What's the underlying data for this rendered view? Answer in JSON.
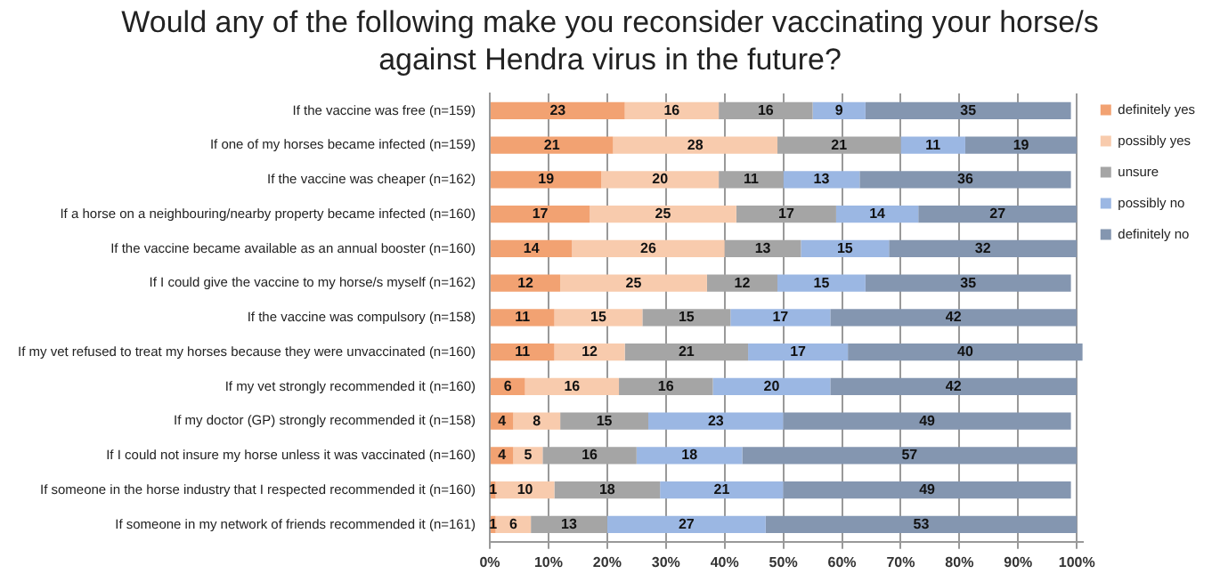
{
  "chart_data": {
    "type": "bar",
    "orientation": "horizontal",
    "stacked": true,
    "title": "Would any of the following make you reconsider vaccinating your horse/s against Hendra virus in the future?",
    "categories": [
      "If the vaccine was free (n=159)",
      "If one of my horses became infected (n=159)",
      "If the vaccine was cheaper (n=162)",
      "If a horse on a neighbouring/nearby property became infected (n=160)",
      "If the vaccine became available as an annual booster (n=160)",
      "If I could give the vaccine to my horse/s myself (n=162)",
      "If the vaccine was compulsory (n=158)",
      "If my vet refused to treat my horses because they were unvaccinated (n=160)",
      "If my vet strongly recommended it (n=160)",
      "If my doctor (GP) strongly recommended it (n=158)",
      "If I could not insure my horse unless it was vaccinated (n=160)",
      "If someone in the horse industry that I respected recommended it (n=160)",
      "If someone in my network of friends recommended it (n=161)"
    ],
    "series": [
      {
        "name": "definitely yes",
        "color": "#f2a272",
        "values": [
          23,
          21,
          19,
          17,
          14,
          12,
          11,
          11,
          6,
          4,
          4,
          1,
          1
        ]
      },
      {
        "name": "possibly yes",
        "color": "#f8cbad",
        "values": [
          16,
          28,
          20,
          25,
          26,
          25,
          15,
          12,
          16,
          8,
          5,
          10,
          6
        ]
      },
      {
        "name": "unsure",
        "color": "#a5a5a5",
        "values": [
          16,
          21,
          11,
          17,
          13,
          12,
          15,
          21,
          16,
          15,
          16,
          18,
          13
        ]
      },
      {
        "name": "possibly no",
        "color": "#9bb7e3",
        "values": [
          9,
          11,
          13,
          14,
          15,
          15,
          17,
          17,
          20,
          23,
          18,
          21,
          27
        ]
      },
      {
        "name": "definitely no",
        "color": "#8496b0",
        "values": [
          35,
          19,
          36,
          27,
          32,
          35,
          42,
          40,
          42,
          49,
          57,
          49,
          53
        ]
      }
    ],
    "xlim": [
      0,
      101
    ],
    "xticks": [
      {
        "value": 0,
        "label": "0%"
      },
      {
        "value": 10,
        "label": "10%"
      },
      {
        "value": 20,
        "label": "20%"
      },
      {
        "value": 30,
        "label": "30%"
      },
      {
        "value": 40,
        "label": "40%"
      },
      {
        "value": 50,
        "label": "50%"
      },
      {
        "value": 60,
        "label": "60%"
      },
      {
        "value": 70,
        "label": "70%"
      },
      {
        "value": 80,
        "label": "80%"
      },
      {
        "value": 90,
        "label": "90%"
      },
      {
        "value": 100,
        "label": "100%"
      }
    ],
    "grid": "x",
    "legend": "right",
    "data_labels": true
  }
}
